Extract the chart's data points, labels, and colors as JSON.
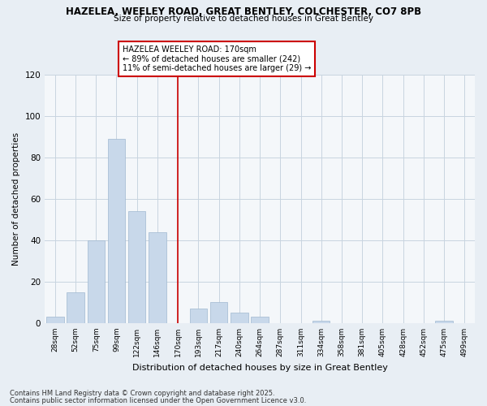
{
  "title": "HAZELEA, WEELEY ROAD, GREAT BENTLEY, COLCHESTER, CO7 8PB",
  "subtitle": "Size of property relative to detached houses in Great Bentley",
  "xlabel": "Distribution of detached houses by size in Great Bentley",
  "ylabel": "Number of detached properties",
  "categories": [
    "28sqm",
    "52sqm",
    "75sqm",
    "99sqm",
    "122sqm",
    "146sqm",
    "170sqm",
    "193sqm",
    "217sqm",
    "240sqm",
    "264sqm",
    "287sqm",
    "311sqm",
    "334sqm",
    "358sqm",
    "381sqm",
    "405sqm",
    "428sqm",
    "452sqm",
    "475sqm",
    "499sqm"
  ],
  "values": [
    3,
    15,
    40,
    89,
    54,
    44,
    0,
    7,
    10,
    5,
    3,
    0,
    0,
    1,
    0,
    0,
    0,
    0,
    0,
    1,
    0
  ],
  "bar_color": "#c8d8ea",
  "bar_edge_color": "#a0b8d0",
  "highlight_index": 6,
  "highlight_line_color": "#cc0000",
  "annotation_text": "HAZELEA WEELEY ROAD: 170sqm\n← 89% of detached houses are smaller (242)\n11% of semi-detached houses are larger (29) →",
  "annotation_box_color": "#ffffff",
  "annotation_box_edge_color": "#cc0000",
  "ylim": [
    0,
    120
  ],
  "yticks": [
    0,
    20,
    40,
    60,
    80,
    100,
    120
  ],
  "footer_line1": "Contains HM Land Registry data © Crown copyright and database right 2025.",
  "footer_line2": "Contains public sector information licensed under the Open Government Licence v3.0.",
  "background_color": "#e8eef4",
  "plot_background_color": "#f4f7fa",
  "grid_color": "#c8d4e0"
}
